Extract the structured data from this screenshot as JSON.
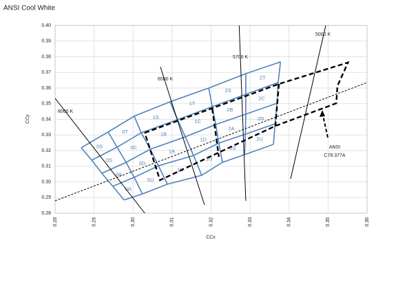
{
  "chart_data": {
    "type": "line",
    "title": "ANSI Cool White",
    "x_label": "CCx",
    "y_label": "CCy",
    "xlim": [
      0.28,
      0.36
    ],
    "ylim": [
      0.28,
      0.4
    ],
    "xticks": [
      0.28,
      0.29,
      {
        "value": 0.3,
        "label": "0.30"
      },
      0.31,
      0.32,
      0.33,
      0.34,
      0.35,
      0.36
    ],
    "yticks": [
      0.28,
      0.29,
      {
        "value": 0.3,
        "label": "0.30"
      },
      0.31,
      0.32,
      0.33,
      0.34,
      0.35,
      0.36,
      0.37,
      0.38,
      0.39,
      {
        "value": 0.4,
        "label": "0.40"
      }
    ],
    "grid": true,
    "bin_color": "#4f81bd",
    "grid_rows": [
      {
        "x": [
          0.2867,
          0.2936,
          0.3003,
          0.3095,
          0.3194,
          0.3289,
          0.3378
        ],
        "values": [
          0.3218,
          0.3319,
          0.342,
          0.3512,
          0.36,
          0.3692,
          0.3767
        ]
      },
      {
        "x": [
          0.2894,
          0.2959,
          0.3021,
          0.3114,
          0.3203,
          0.3289,
          0.3372
        ],
        "values": [
          0.3139,
          0.3222,
          0.3314,
          0.3398,
          0.3481,
          0.356,
          0.3635
        ]
      },
      {
        "x": [
          0.292,
          0.2982,
          0.3044,
          0.3134,
          0.3212,
          0.3289,
          0.3369
        ],
        "values": [
          0.3055,
          0.3125,
          0.3209,
          0.3288,
          0.3367,
          0.3433,
          0.3503
        ]
      },
      {
        "x": [
          0.2948,
          0.3003,
          0.3065,
          0.3155,
          0.322,
          0.3288,
          0.3364
        ],
        "values": [
          0.2972,
          0.3029,
          0.3103,
          0.3169,
          0.3248,
          0.3305,
          0.3371
        ]
      },
      {
        "x": [
          0.2977,
          0.3024,
          0.3088,
          0.3176,
          0.3229,
          0.3286,
          0.336
        ],
        "values": [
          0.2884,
          0.2923,
          0.2985,
          0.3042,
          0.3125,
          0.3174,
          0.324
        ]
      }
    ],
    "bin_labels": [
      [
        "0S",
        "0T",
        "1S",
        "1T",
        "2S",
        "2T"
      ],
      [
        "0S",
        "0C",
        "1B",
        "1C",
        "2B",
        "2C"
      ],
      [
        "0A",
        "0D",
        "1A",
        "1D",
        "2A",
        "2D"
      ],
      [
        "0R",
        "0U",
        "1R",
        "1U",
        "2S",
        "2U"
      ]
    ],
    "series": [
      {
        "name": "8000 K",
        "color": "#000000",
        "line_style": "solid",
        "x": [
          0.28,
          0.303
        ],
        "values": [
          0.3534,
          0.28
        ]
      },
      {
        "name": "6500 K",
        "color": "#000000",
        "line_style": "solid",
        "x": [
          0.307,
          0.3183
        ],
        "values": [
          0.3736,
          0.2853
        ]
      },
      {
        "name": "5700 K",
        "color": "#000000",
        "line_style": "solid",
        "x": [
          0.3272,
          0.3289
        ],
        "values": [
          0.4,
          0.2879
        ]
      },
      {
        "name": "5000 K",
        "color": "#000000",
        "line_style": "solid",
        "x": [
          0.3494,
          0.3404
        ],
        "values": [
          0.4,
          0.302
        ]
      },
      {
        "color": "#000000",
        "line_style": "dashed",
        "x": [
          0.28,
          0.36
        ],
        "values": [
          0.2879,
          0.3635
        ]
      },
      {
        "color": "#000000",
        "line_style": "bold-dashed",
        "x": [
          0.303,
          0.3374,
          0.3551,
          0.3524,
          0.3521,
          0.3498,
          0.3365,
          0.3069,
          0.303
        ],
        "values": [
          0.3314,
          0.3626,
          0.3763,
          0.3613,
          0.3503,
          0.3481,
          0.3358,
          0.3011,
          0.3314
        ]
      },
      {
        "color": "#000000",
        "line_style": "bold-dashed",
        "x": [
          0.3203,
          0.322,
          null,
          0.3374,
          0.3365
        ],
        "values": [
          0.3468,
          0.316,
          null,
          0.3626,
          0.3358
        ]
      }
    ],
    "annotation": [
      "ANSI",
      "C78.377A"
    ]
  }
}
